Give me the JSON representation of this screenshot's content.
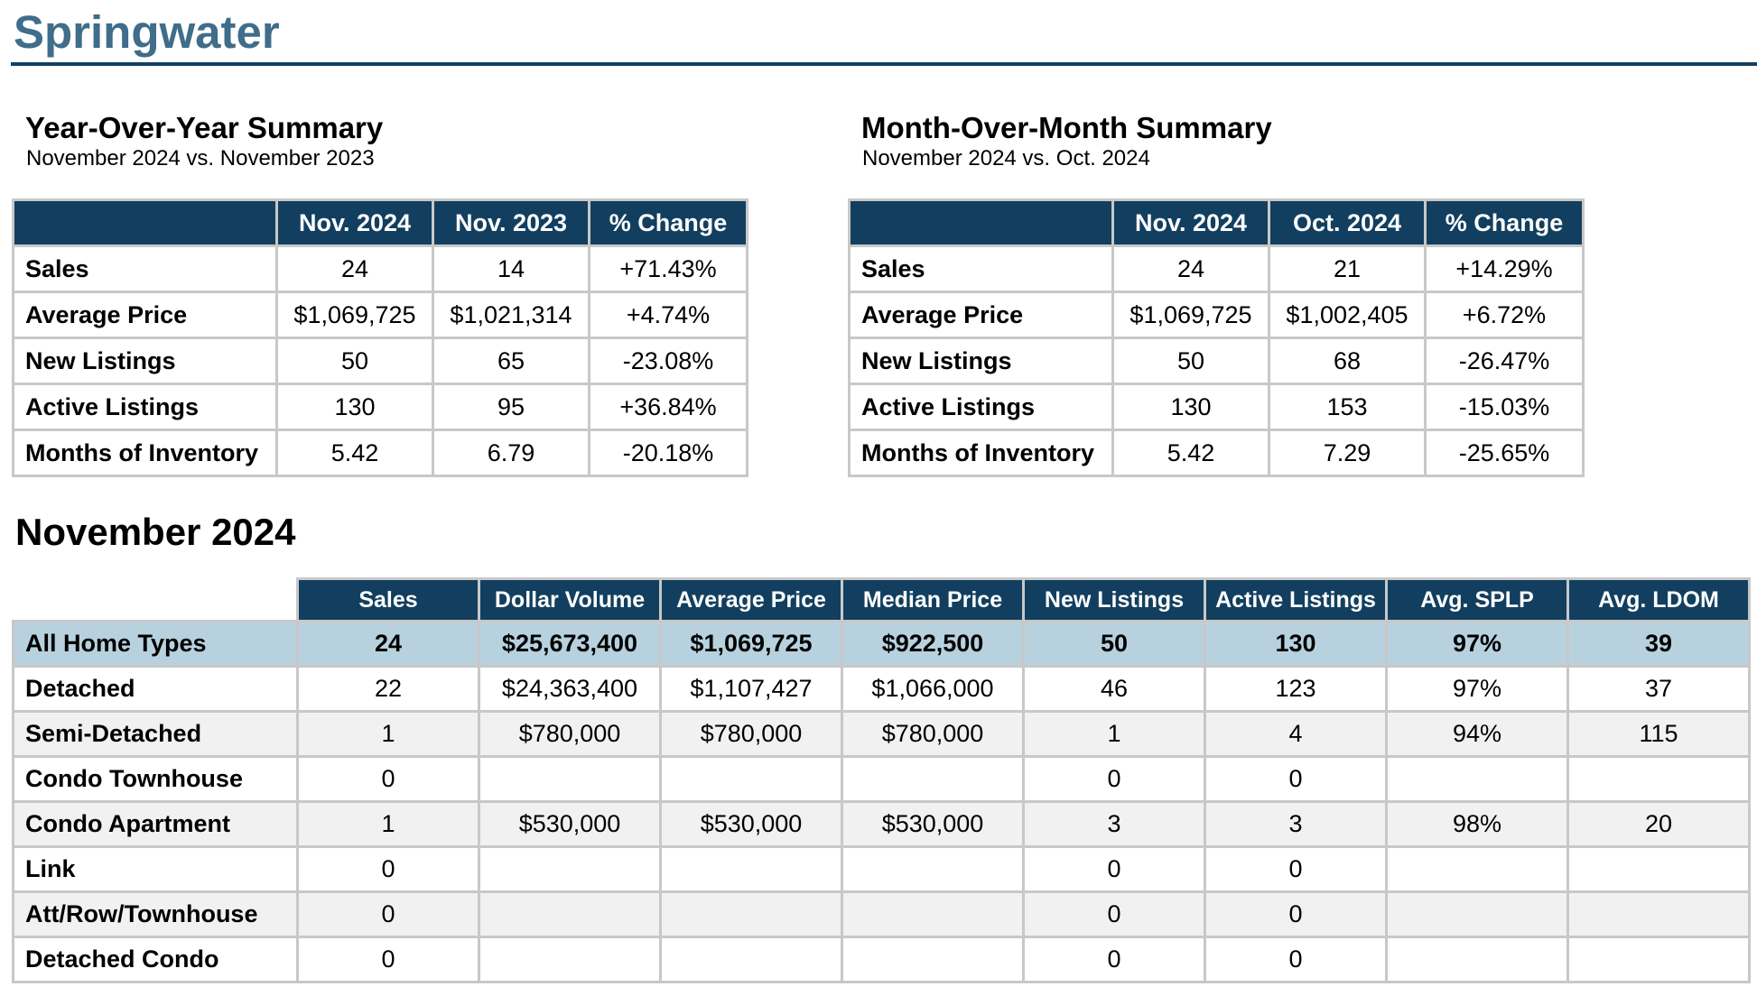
{
  "title": "Springwater",
  "yoy": {
    "title": "Year-Over-Year Summary",
    "subtitle": "November 2024 vs. November 2023",
    "headers": [
      "",
      "Nov. 2024",
      "Nov. 2023",
      "% Change"
    ],
    "rows": [
      {
        "label": "Sales",
        "a": "24",
        "b": "14",
        "change": "+71.43%"
      },
      {
        "label": "Average Price",
        "a": "$1,069,725",
        "b": "$1,021,314",
        "change": "+4.74%"
      },
      {
        "label": "New Listings",
        "a": "50",
        "b": "65",
        "change": "-23.08%"
      },
      {
        "label": "Active Listings",
        "a": "130",
        "b": "95",
        "change": "+36.84%"
      },
      {
        "label": "Months of Inventory",
        "a": "5.42",
        "b": "6.79",
        "change": "-20.18%"
      }
    ]
  },
  "mom": {
    "title": "Month-Over-Month Summary",
    "subtitle": "November 2024 vs. Oct. 2024",
    "headers": [
      "",
      "Nov. 2024",
      "Oct. 2024",
      "% Change"
    ],
    "rows": [
      {
        "label": "Sales",
        "a": "24",
        "b": "21",
        "change": "+14.29%"
      },
      {
        "label": "Average Price",
        "a": "$1,069,725",
        "b": "$1,002,405",
        "change": "+6.72%"
      },
      {
        "label": "New Listings",
        "a": "50",
        "b": "68",
        "change": "-26.47%"
      },
      {
        "label": "Active Listings",
        "a": "130",
        "b": "153",
        "change": "-15.03%"
      },
      {
        "label": "Months of Inventory",
        "a": "5.42",
        "b": "7.29",
        "change": "-25.65%"
      }
    ]
  },
  "monthly": {
    "heading": "November 2024",
    "headers": [
      "Sales",
      "Dollar Volume",
      "Average Price",
      "Median Price",
      "New Listings",
      "Active Listings",
      "Avg. SPLP",
      "Avg. LDOM"
    ],
    "rows": [
      {
        "label": "All Home Types",
        "cells": [
          "24",
          "$25,673,400",
          "$1,069,725",
          "$922,500",
          "50",
          "130",
          "97%",
          "39"
        ]
      },
      {
        "label": "Detached",
        "cells": [
          "22",
          "$24,363,400",
          "$1,107,427",
          "$1,066,000",
          "46",
          "123",
          "97%",
          "37"
        ]
      },
      {
        "label": "Semi-Detached",
        "cells": [
          "1",
          "$780,000",
          "$780,000",
          "$780,000",
          "1",
          "4",
          "94%",
          "115"
        ]
      },
      {
        "label": "Condo Townhouse",
        "cells": [
          "0",
          "",
          "",
          "",
          "0",
          "0",
          "",
          ""
        ]
      },
      {
        "label": "Condo Apartment",
        "cells": [
          "1",
          "$530,000",
          "$530,000",
          "$530,000",
          "3",
          "3",
          "98%",
          "20"
        ]
      },
      {
        "label": "Link",
        "cells": [
          "0",
          "",
          "",
          "",
          "0",
          "0",
          "",
          ""
        ]
      },
      {
        "label": "Att/Row/Townhouse",
        "cells": [
          "0",
          "",
          "",
          "",
          "0",
          "0",
          "",
          ""
        ]
      },
      {
        "label": "Detached Condo",
        "cells": [
          "0",
          "",
          "",
          "",
          "0",
          "0",
          "",
          ""
        ]
      }
    ]
  }
}
